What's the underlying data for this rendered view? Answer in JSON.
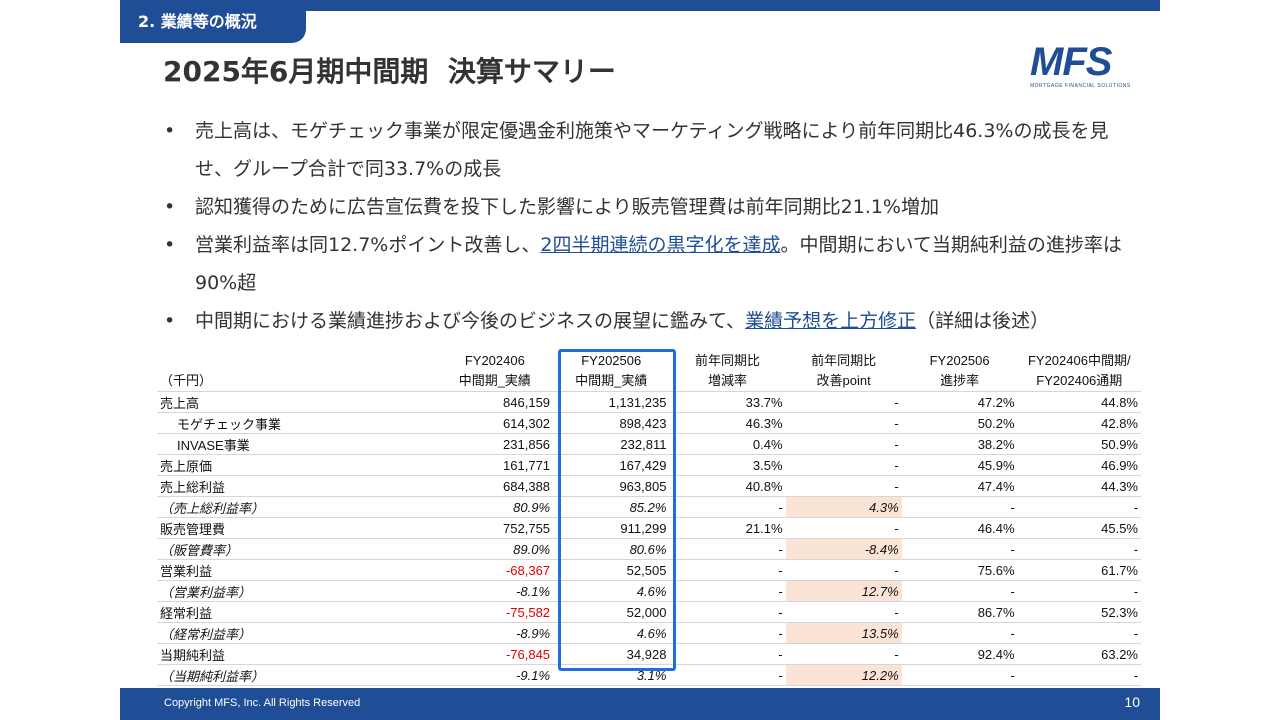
{
  "header": {
    "section_label": "2. 業績等の概況",
    "title": "2025年6月期中間期  決算サマリー",
    "logo_text": "MFS",
    "logo_subtext": "MORTGAGE FINANCIAL SOLUTIONS",
    "brand_color": "#1f4e96"
  },
  "bullets": [
    {
      "text_before": "売上高は、モゲチェック事業が限定優遇金利施策やマーケティング戦略により前年同期比46.3%の成長を見せ、グループ合計で同33.7%の成長",
      "link": "",
      "text_after": ""
    },
    {
      "text_before": "認知獲得のために広告宣伝費を投下した影響により販売管理費は前年同期比21.1%増加",
      "link": "",
      "text_after": ""
    },
    {
      "text_before": "営業利益率は同12.7%ポイント改善し、",
      "link": "2四半期連続の黒字化を達成",
      "text_after": "。中間期において当期純利益の進捗率は90%超"
    },
    {
      "text_before": "中間期における業績進捗および今後のビジネスの展望に鑑みて、",
      "link": "業績予想を上方修正",
      "text_after": "（詳細は後述）"
    }
  ],
  "table": {
    "unit": "（千円）",
    "headers": [
      {
        "line1": "FY202406",
        "line2": "中間期_実績"
      },
      {
        "line1": "FY202506",
        "line2": "中間期_実績"
      },
      {
        "line1": "前年同期比",
        "line2": "増減率"
      },
      {
        "line1": "前年同期比",
        "line2": "改善point"
      },
      {
        "line1": "FY202506",
        "line2": "進捗率"
      },
      {
        "line1": "FY202406中間期/",
        "line2": "FY202406通期"
      }
    ],
    "rows": [
      {
        "label": "売上高",
        "values": [
          "846,159",
          "1,131,235",
          "33.7%",
          "-",
          "47.2%",
          "44.8%"
        ]
      },
      {
        "label": "モゲチェック事業",
        "values": [
          "614,302",
          "898,423",
          "46.3%",
          "-",
          "50.2%",
          "42.8%"
        ]
      },
      {
        "label": "INVASE事業",
        "values": [
          "231,856",
          "232,811",
          "0.4%",
          "-",
          "38.2%",
          "50.9%"
        ]
      },
      {
        "label": "売上原価",
        "values": [
          "161,771",
          "167,429",
          "3.5%",
          "-",
          "45.9%",
          "46.9%"
        ]
      },
      {
        "label": "売上総利益",
        "values": [
          "684,388",
          "963,805",
          "40.8%",
          "-",
          "47.4%",
          "44.3%"
        ]
      },
      {
        "label": "（売上総利益率）",
        "values": [
          "80.9%",
          "85.2%",
          "-",
          "4.3%",
          "-",
          "-"
        ]
      },
      {
        "label": "販売管理費",
        "values": [
          "752,755",
          "911,299",
          "21.1%",
          "-",
          "46.4%",
          "45.5%"
        ]
      },
      {
        "label": "（販管費率）",
        "values": [
          "89.0%",
          "80.6%",
          "-",
          "-8.4%",
          "-",
          "-"
        ]
      },
      {
        "label": "営業利益",
        "values": [
          "-68,367",
          "52,505",
          "-",
          "-",
          "75.6%",
          "61.7%"
        ]
      },
      {
        "label": "（営業利益率）",
        "values": [
          "-8.1%",
          "4.6%",
          "-",
          "12.7%",
          "-",
          "-"
        ]
      },
      {
        "label": "経常利益",
        "values": [
          "-75,582",
          "52,000",
          "-",
          "-",
          "86.7%",
          "52.3%"
        ]
      },
      {
        "label": "（経常利益率）",
        "values": [
          "-8.9%",
          "4.6%",
          "-",
          "13.5%",
          "-",
          "-"
        ]
      },
      {
        "label": "当期純利益",
        "values": [
          "-76,845",
          "34,928",
          "-",
          "-",
          "92.4%",
          "63.2%"
        ]
      },
      {
        "label": "（当期純利益率）",
        "values": [
          "-9.1%",
          "3.1%",
          "-",
          "12.2%",
          "-",
          "-"
        ]
      }
    ],
    "negative_color": "#e00000",
    "highlight_color": "#fbe4d6",
    "frame_color": "#1f6fd8"
  },
  "footer": {
    "copyright": "Copyright MFS, Inc. All Rights Reserved",
    "page_number": "10"
  }
}
